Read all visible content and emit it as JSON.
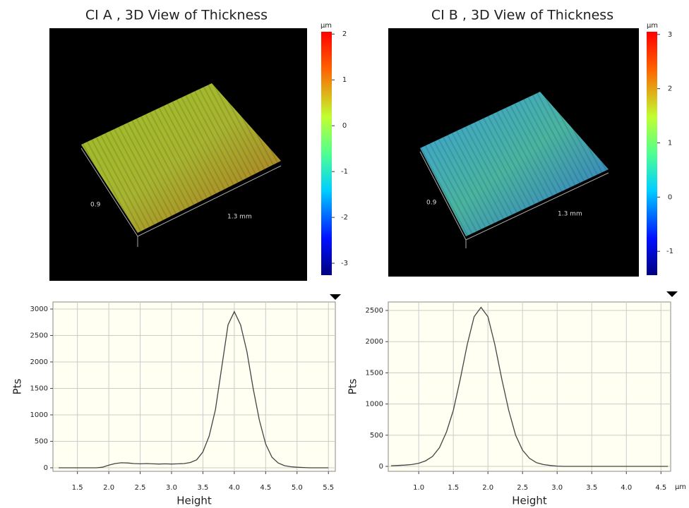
{
  "chart_data": [
    {
      "type": "surface",
      "title": "CI A , 3D View of Thickness",
      "axis_labels": [
        "0.9",
        "1.3 mm"
      ],
      "colorbar": {
        "label": "µm",
        "lim": [
          -3.26,
          2.05
        ],
        "ticks": [
          2,
          1,
          0,
          -1,
          -2,
          -3
        ]
      }
    },
    {
      "type": "surface",
      "title": "CI B , 3D View of Thickness",
      "axis_labels": [
        "0.9",
        "1.3 mm"
      ],
      "colorbar": {
        "label": "µm",
        "lim": [
          -1.44,
          3.05
        ],
        "ticks": [
          3,
          2,
          1,
          0,
          -1
        ]
      }
    },
    {
      "type": "line",
      "xlabel": "Height",
      "ylabel": "Pts",
      "color": "#444444",
      "x": [
        1.2,
        1.3,
        1.4,
        1.5,
        1.6,
        1.7,
        1.8,
        1.9,
        2.0,
        2.1,
        2.2,
        2.3,
        2.4,
        2.5,
        2.6,
        2.7,
        2.8,
        2.9,
        3.0,
        3.1,
        3.2,
        3.3,
        3.4,
        3.5,
        3.6,
        3.7,
        3.8,
        3.9,
        4.0,
        4.1,
        4.2,
        4.3,
        4.4,
        4.5,
        4.6,
        4.7,
        4.8,
        4.9,
        5.0,
        5.1,
        5.2,
        5.3,
        5.4,
        5.5
      ],
      "values": [
        0,
        0,
        0,
        0,
        0,
        0,
        0,
        10,
        50,
        80,
        95,
        90,
        80,
        75,
        80,
        75,
        70,
        75,
        70,
        75,
        80,
        100,
        150,
        300,
        600,
        1100,
        1900,
        2700,
        2950,
        2700,
        2200,
        1500,
        900,
        450,
        200,
        90,
        40,
        20,
        10,
        5,
        0,
        0,
        0,
        0
      ],
      "xlim": [
        1.11,
        5.61
      ],
      "ylim": [
        -67,
        3133
      ],
      "xticks": [
        1.5,
        {
          "value": 2,
          "label": "2.0"
        },
        2.5,
        {
          "value": 3,
          "label": "3.0"
        },
        3.5,
        {
          "value": 4,
          "label": "4.0"
        },
        4.5,
        {
          "value": 5,
          "label": "5.0"
        },
        5.5
      ],
      "yticks": [
        0,
        500,
        1000,
        1500,
        2000,
        2500,
        3000
      ],
      "grid": true
    },
    {
      "type": "line",
      "xlabel": "Height",
      "ylabel": "Pts",
      "x_unit": "µm",
      "color": "#444444",
      "x": [
        0.6,
        0.7,
        0.8,
        0.9,
        1.0,
        1.1,
        1.2,
        1.3,
        1.4,
        1.5,
        1.6,
        1.7,
        1.8,
        1.9,
        2.0,
        2.1,
        2.2,
        2.3,
        2.4,
        2.5,
        2.6,
        2.7,
        2.8,
        2.9,
        3.0,
        3.1,
        3.2,
        3.3,
        3.4,
        3.5,
        3.6,
        3.7,
        3.8,
        3.9,
        4.0,
        4.1,
        4.2,
        4.3,
        4.4,
        4.5,
        4.6
      ],
      "values": [
        10,
        15,
        20,
        30,
        50,
        90,
        160,
        300,
        550,
        900,
        1400,
        1950,
        2400,
        2550,
        2400,
        1950,
        1400,
        900,
        500,
        260,
        130,
        60,
        30,
        15,
        5,
        0,
        0,
        0,
        0,
        0,
        0,
        0,
        0,
        0,
        0,
        0,
        0,
        0,
        0,
        0,
        0
      ],
      "xlim": [
        0.56,
        4.64
      ],
      "ylim": [
        -79,
        2636
      ],
      "xticks": [
        {
          "value": 1,
          "label": "1.0"
        },
        1.5,
        {
          "value": 2,
          "label": "2.0"
        },
        2.5,
        {
          "value": 3,
          "label": "3.0"
        },
        3.5,
        {
          "value": 4,
          "label": "4.0"
        },
        4.5
      ],
      "yticks": [
        0,
        500,
        1000,
        1500,
        2000,
        2500
      ],
      "grid": true
    }
  ]
}
